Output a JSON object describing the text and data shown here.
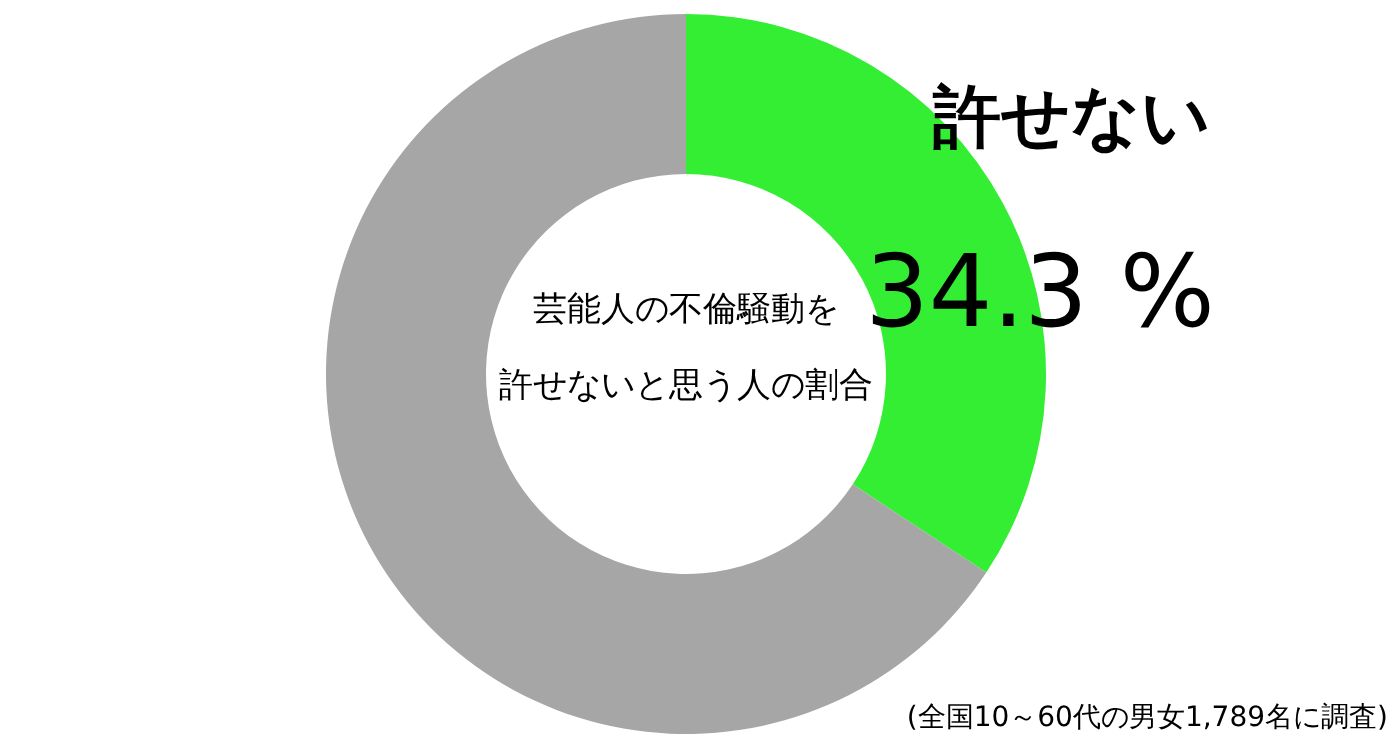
{
  "chart_data": {
    "type": "donut",
    "title": "芸能人の不倫騒動を許せないと思う人の割合",
    "categories": [
      "許せない",
      null
    ],
    "values": [
      34.3,
      65.7
    ],
    "colors": [
      "#33ee33",
      "#a6a6a6"
    ],
    "value_labels": [
      "34.3 %",
      null
    ],
    "annotations": [
      "(全国10～60代の男女1,789名に調査)"
    ]
  }
}
